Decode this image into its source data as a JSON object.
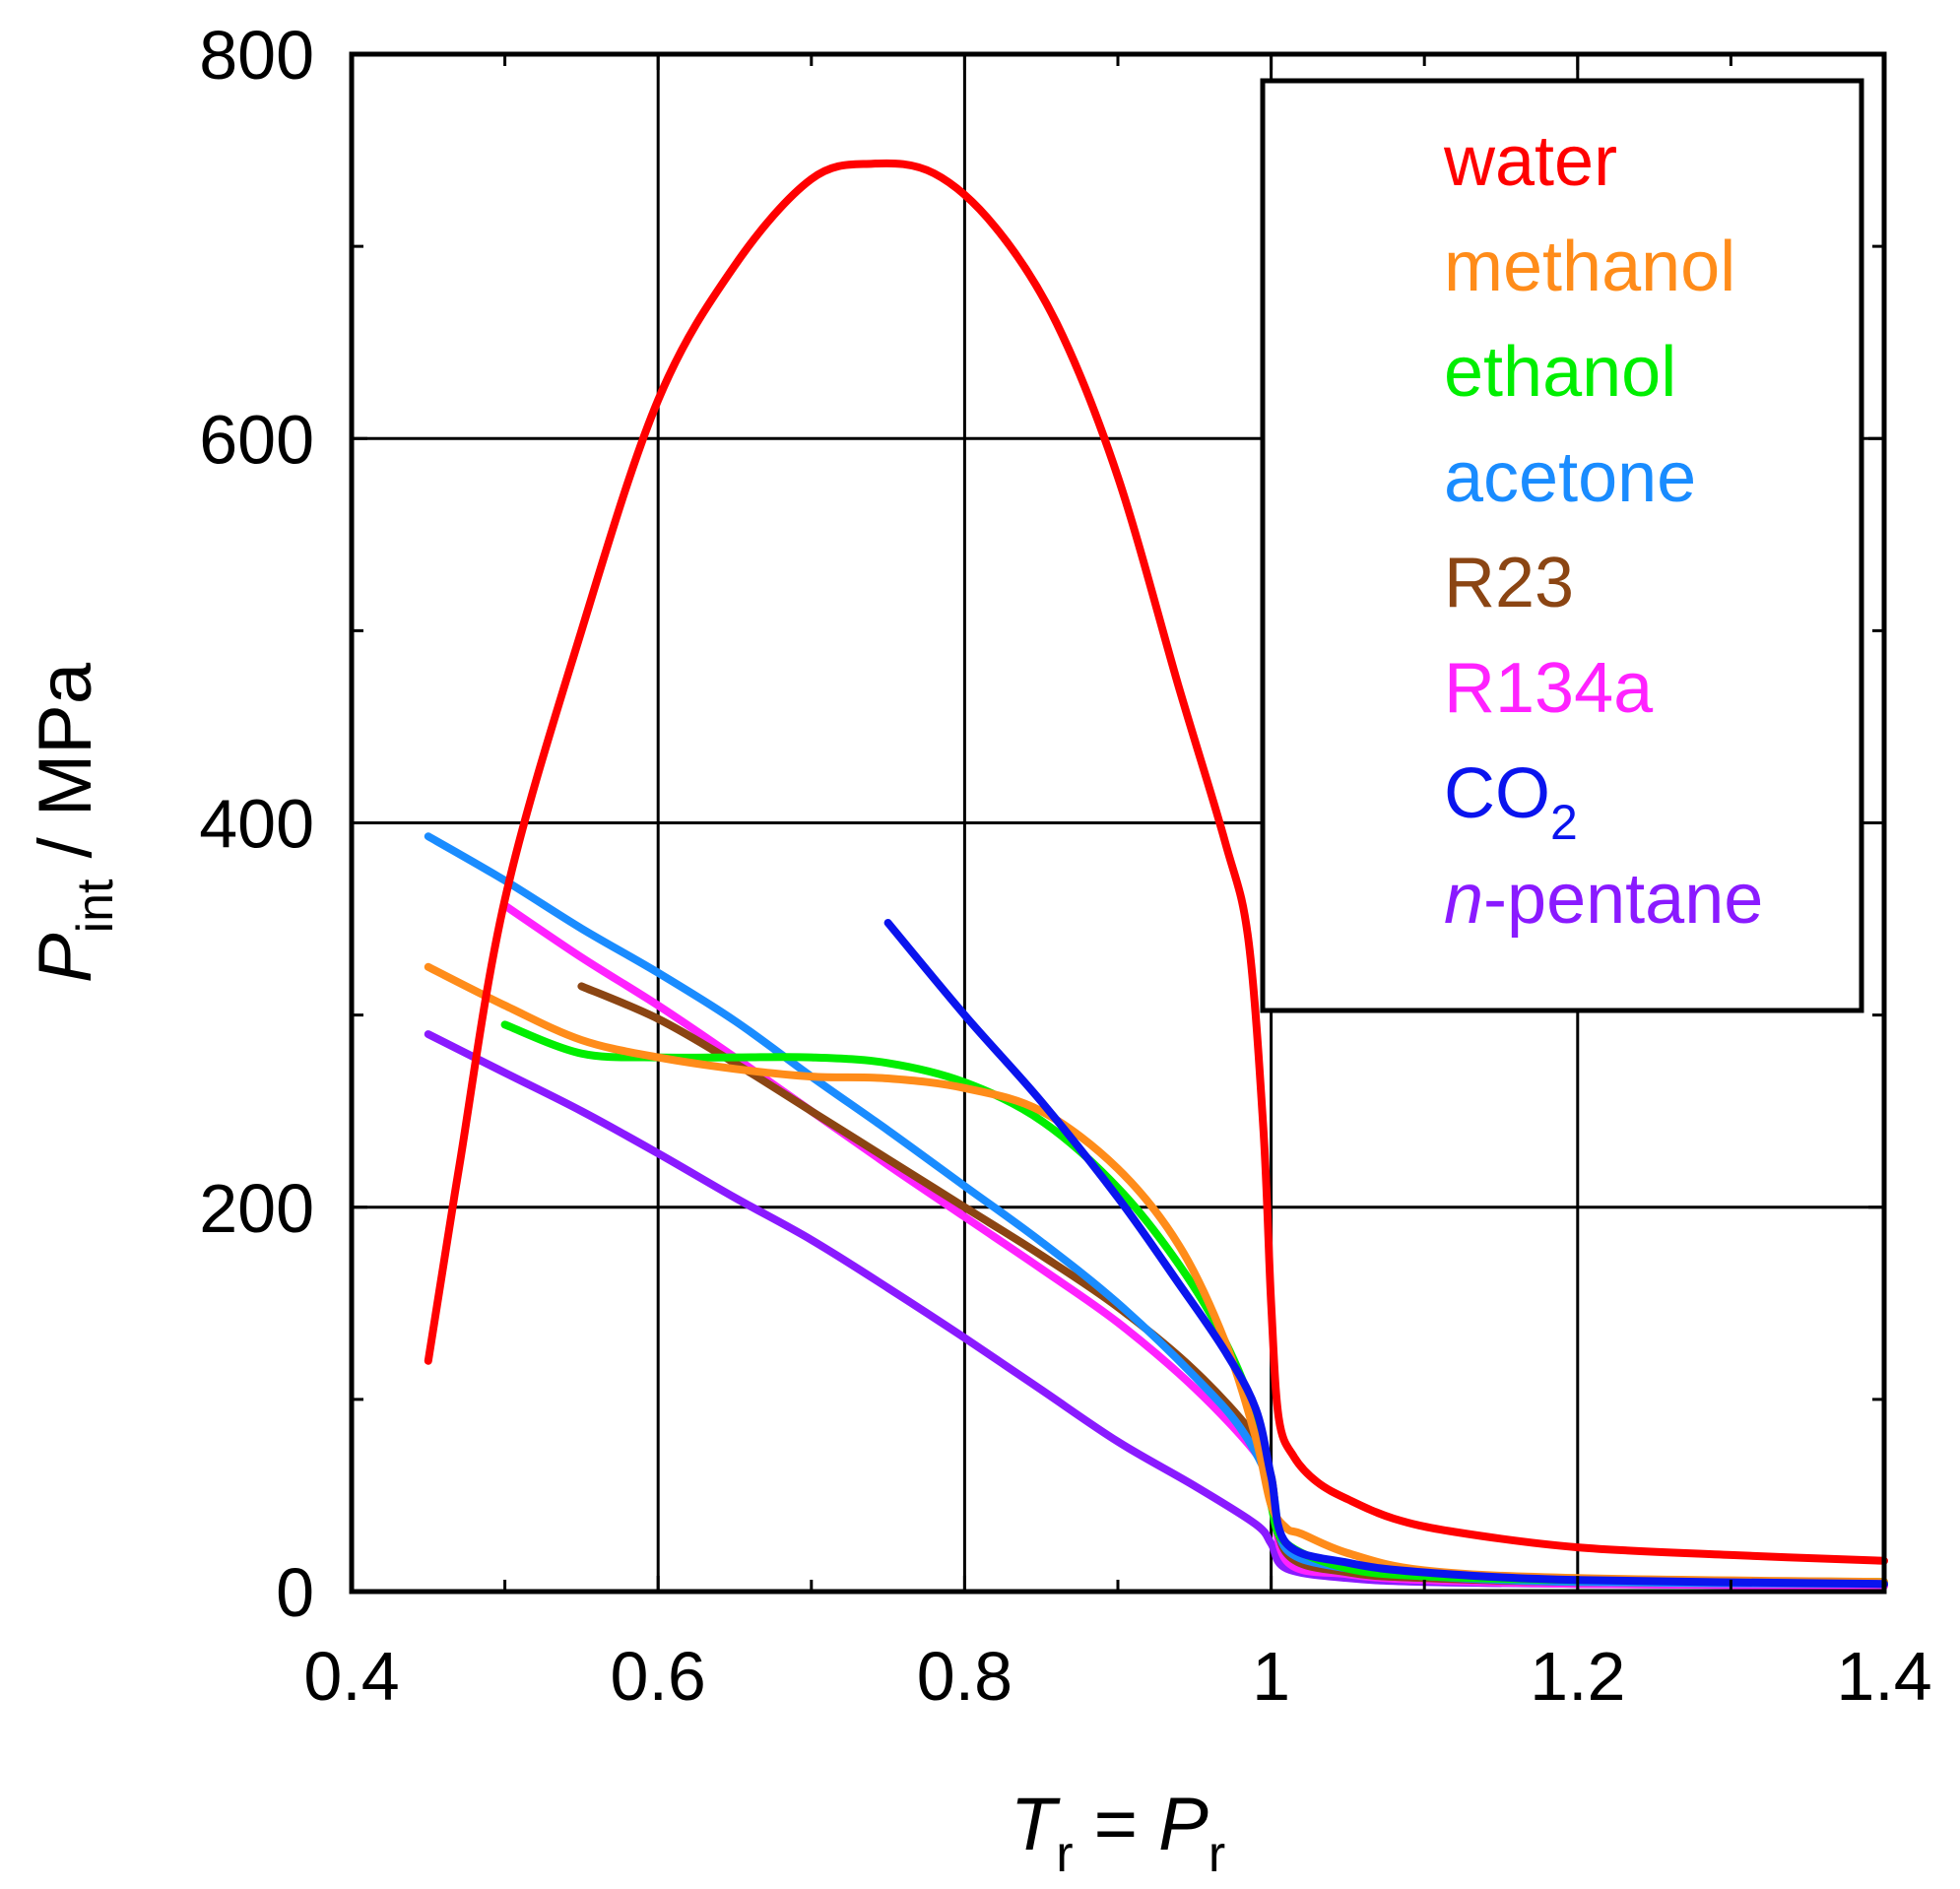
{
  "chart_data": {
    "type": "line",
    "title": "",
    "xlabel": {
      "main": "T",
      "sub": "r",
      "eq": " = ",
      "main2": "P",
      "sub2": "r"
    },
    "ylabel": {
      "main": "P",
      "sub": "int",
      "unit": " / MPa"
    },
    "xlim": [
      0.4,
      1.4
    ],
    "ylim": [
      0,
      800
    ],
    "grid": true,
    "legend_position": "top-right",
    "xticks": [
      {
        "value": 0.4,
        "label": "0.4"
      },
      {
        "value": 0.6,
        "label": "0.6"
      },
      {
        "value": 0.8,
        "label": "0.8"
      },
      {
        "value": 1.0,
        "label": "1"
      },
      {
        "value": 1.2,
        "label": "1.2"
      },
      {
        "value": 1.4,
        "label": "1.4"
      }
    ],
    "xminor": [
      0.5,
      0.7,
      0.9,
      1.1,
      1.3
    ],
    "yticks": [
      {
        "value": 0,
        "label": "0"
      },
      {
        "value": 200,
        "label": "200"
      },
      {
        "value": 400,
        "label": "400"
      },
      {
        "value": 600,
        "label": "600"
      },
      {
        "value": 800,
        "label": "800"
      }
    ],
    "yminor": [
      100,
      300,
      500,
      700
    ],
    "series": [
      {
        "name": "water",
        "color": "#ff0000",
        "points": [
          [
            0.45,
            120
          ],
          [
            0.47,
            220
          ],
          [
            0.5,
            360
          ],
          [
            0.55,
            500
          ],
          [
            0.6,
            620
          ],
          [
            0.65,
            690
          ],
          [
            0.7,
            735
          ],
          [
            0.74,
            743
          ],
          [
            0.78,
            738
          ],
          [
            0.82,
            710
          ],
          [
            0.86,
            660
          ],
          [
            0.9,
            580
          ],
          [
            0.94,
            470
          ],
          [
            0.97,
            390
          ],
          [
            0.985,
            340
          ],
          [
            0.995,
            240
          ],
          [
            1.0,
            150
          ],
          [
            1.005,
            90
          ],
          [
            1.015,
            70
          ],
          [
            1.03,
            57
          ],
          [
            1.05,
            48
          ],
          [
            1.08,
            38
          ],
          [
            1.12,
            31
          ],
          [
            1.2,
            23
          ],
          [
            1.3,
            19
          ],
          [
            1.4,
            16
          ]
        ]
      },
      {
        "name": "methanol",
        "color": "#ff8c1a",
        "points": [
          [
            0.45,
            325
          ],
          [
            0.5,
            305
          ],
          [
            0.55,
            287
          ],
          [
            0.6,
            278
          ],
          [
            0.65,
            272
          ],
          [
            0.7,
            268
          ],
          [
            0.75,
            267
          ],
          [
            0.8,
            262
          ],
          [
            0.85,
            250
          ],
          [
            0.9,
            220
          ],
          [
            0.94,
            180
          ],
          [
            0.97,
            130
          ],
          [
            0.99,
            80
          ],
          [
            1.0,
            45
          ],
          [
            1.01,
            33
          ],
          [
            1.02,
            30
          ],
          [
            1.05,
            20
          ],
          [
            1.1,
            11
          ],
          [
            1.2,
            7
          ],
          [
            1.4,
            5
          ]
        ]
      },
      {
        "name": "ethanol",
        "color": "#00ee00",
        "points": [
          [
            0.5,
            295
          ],
          [
            0.55,
            280
          ],
          [
            0.6,
            278
          ],
          [
            0.65,
            278
          ],
          [
            0.7,
            278
          ],
          [
            0.75,
            275
          ],
          [
            0.8,
            265
          ],
          [
            0.85,
            245
          ],
          [
            0.9,
            210
          ],
          [
            0.94,
            170
          ],
          [
            0.97,
            130
          ],
          [
            0.99,
            90
          ],
          [
            1.0,
            45
          ],
          [
            1.01,
            25
          ],
          [
            1.05,
            12
          ],
          [
            1.1,
            8
          ],
          [
            1.2,
            6
          ],
          [
            1.4,
            5
          ]
        ]
      },
      {
        "name": "acetone",
        "color": "#1a8cff",
        "points": [
          [
            0.45,
            393
          ],
          [
            0.5,
            370
          ],
          [
            0.55,
            345
          ],
          [
            0.6,
            322
          ],
          [
            0.65,
            297
          ],
          [
            0.7,
            268
          ],
          [
            0.75,
            240
          ],
          [
            0.8,
            211
          ],
          [
            0.85,
            182
          ],
          [
            0.9,
            150
          ],
          [
            0.95,
            112
          ],
          [
            0.98,
            85
          ],
          [
            1.0,
            55
          ],
          [
            1.01,
            22
          ],
          [
            1.05,
            12
          ],
          [
            1.1,
            8
          ],
          [
            1.2,
            5
          ],
          [
            1.4,
            4
          ]
        ]
      },
      {
        "name": "R23",
        "color": "#8b4513",
        "points": [
          [
            0.55,
            315
          ],
          [
            0.6,
            298
          ],
          [
            0.65,
            275
          ],
          [
            0.7,
            250
          ],
          [
            0.75,
            225
          ],
          [
            0.8,
            200
          ],
          [
            0.85,
            175
          ],
          [
            0.9,
            148
          ],
          [
            0.95,
            115
          ],
          [
            0.99,
            80
          ],
          [
            1.0,
            60
          ],
          [
            1.01,
            20
          ],
          [
            1.05,
            10
          ],
          [
            1.1,
            7
          ],
          [
            1.2,
            5
          ],
          [
            1.4,
            4
          ]
        ]
      },
      {
        "name": "R134a",
        "color": "#ff22ff",
        "points": [
          [
            0.5,
            357
          ],
          [
            0.55,
            330
          ],
          [
            0.6,
            305
          ],
          [
            0.65,
            278
          ],
          [
            0.7,
            250
          ],
          [
            0.75,
            222
          ],
          [
            0.8,
            195
          ],
          [
            0.85,
            168
          ],
          [
            0.9,
            140
          ],
          [
            0.95,
            106
          ],
          [
            0.99,
            72
          ],
          [
            1.0,
            55
          ],
          [
            1.01,
            16
          ],
          [
            1.05,
            9
          ],
          [
            1.1,
            6
          ],
          [
            1.2,
            4
          ],
          [
            1.4,
            3
          ]
        ]
      },
      {
        "name": "CO2",
        "name_main": "CO",
        "name_sub": "2",
        "color": "#0a14ee",
        "points": [
          [
            0.75,
            348
          ],
          [
            0.8,
            300
          ],
          [
            0.85,
            255
          ],
          [
            0.9,
            205
          ],
          [
            0.94,
            160
          ],
          [
            0.97,
            125
          ],
          [
            0.99,
            95
          ],
          [
            1.0,
            60
          ],
          [
            1.01,
            25
          ],
          [
            1.05,
            15
          ],
          [
            1.1,
            10
          ],
          [
            1.2,
            6
          ],
          [
            1.4,
            4
          ]
        ]
      },
      {
        "name": "n-pentane",
        "name_italic": "n",
        "name_rest": "-pentane",
        "color": "#8a1aff",
        "points": [
          [
            0.45,
            290
          ],
          [
            0.5,
            270
          ],
          [
            0.55,
            250
          ],
          [
            0.6,
            228
          ],
          [
            0.65,
            205
          ],
          [
            0.7,
            183
          ],
          [
            0.75,
            158
          ],
          [
            0.8,
            132
          ],
          [
            0.85,
            105
          ],
          [
            0.9,
            78
          ],
          [
            0.95,
            55
          ],
          [
            0.99,
            35
          ],
          [
            1.0,
            25
          ],
          [
            1.01,
            12
          ],
          [
            1.05,
            7
          ],
          [
            1.1,
            5
          ],
          [
            1.2,
            4
          ],
          [
            1.4,
            3
          ]
        ]
      }
    ]
  }
}
